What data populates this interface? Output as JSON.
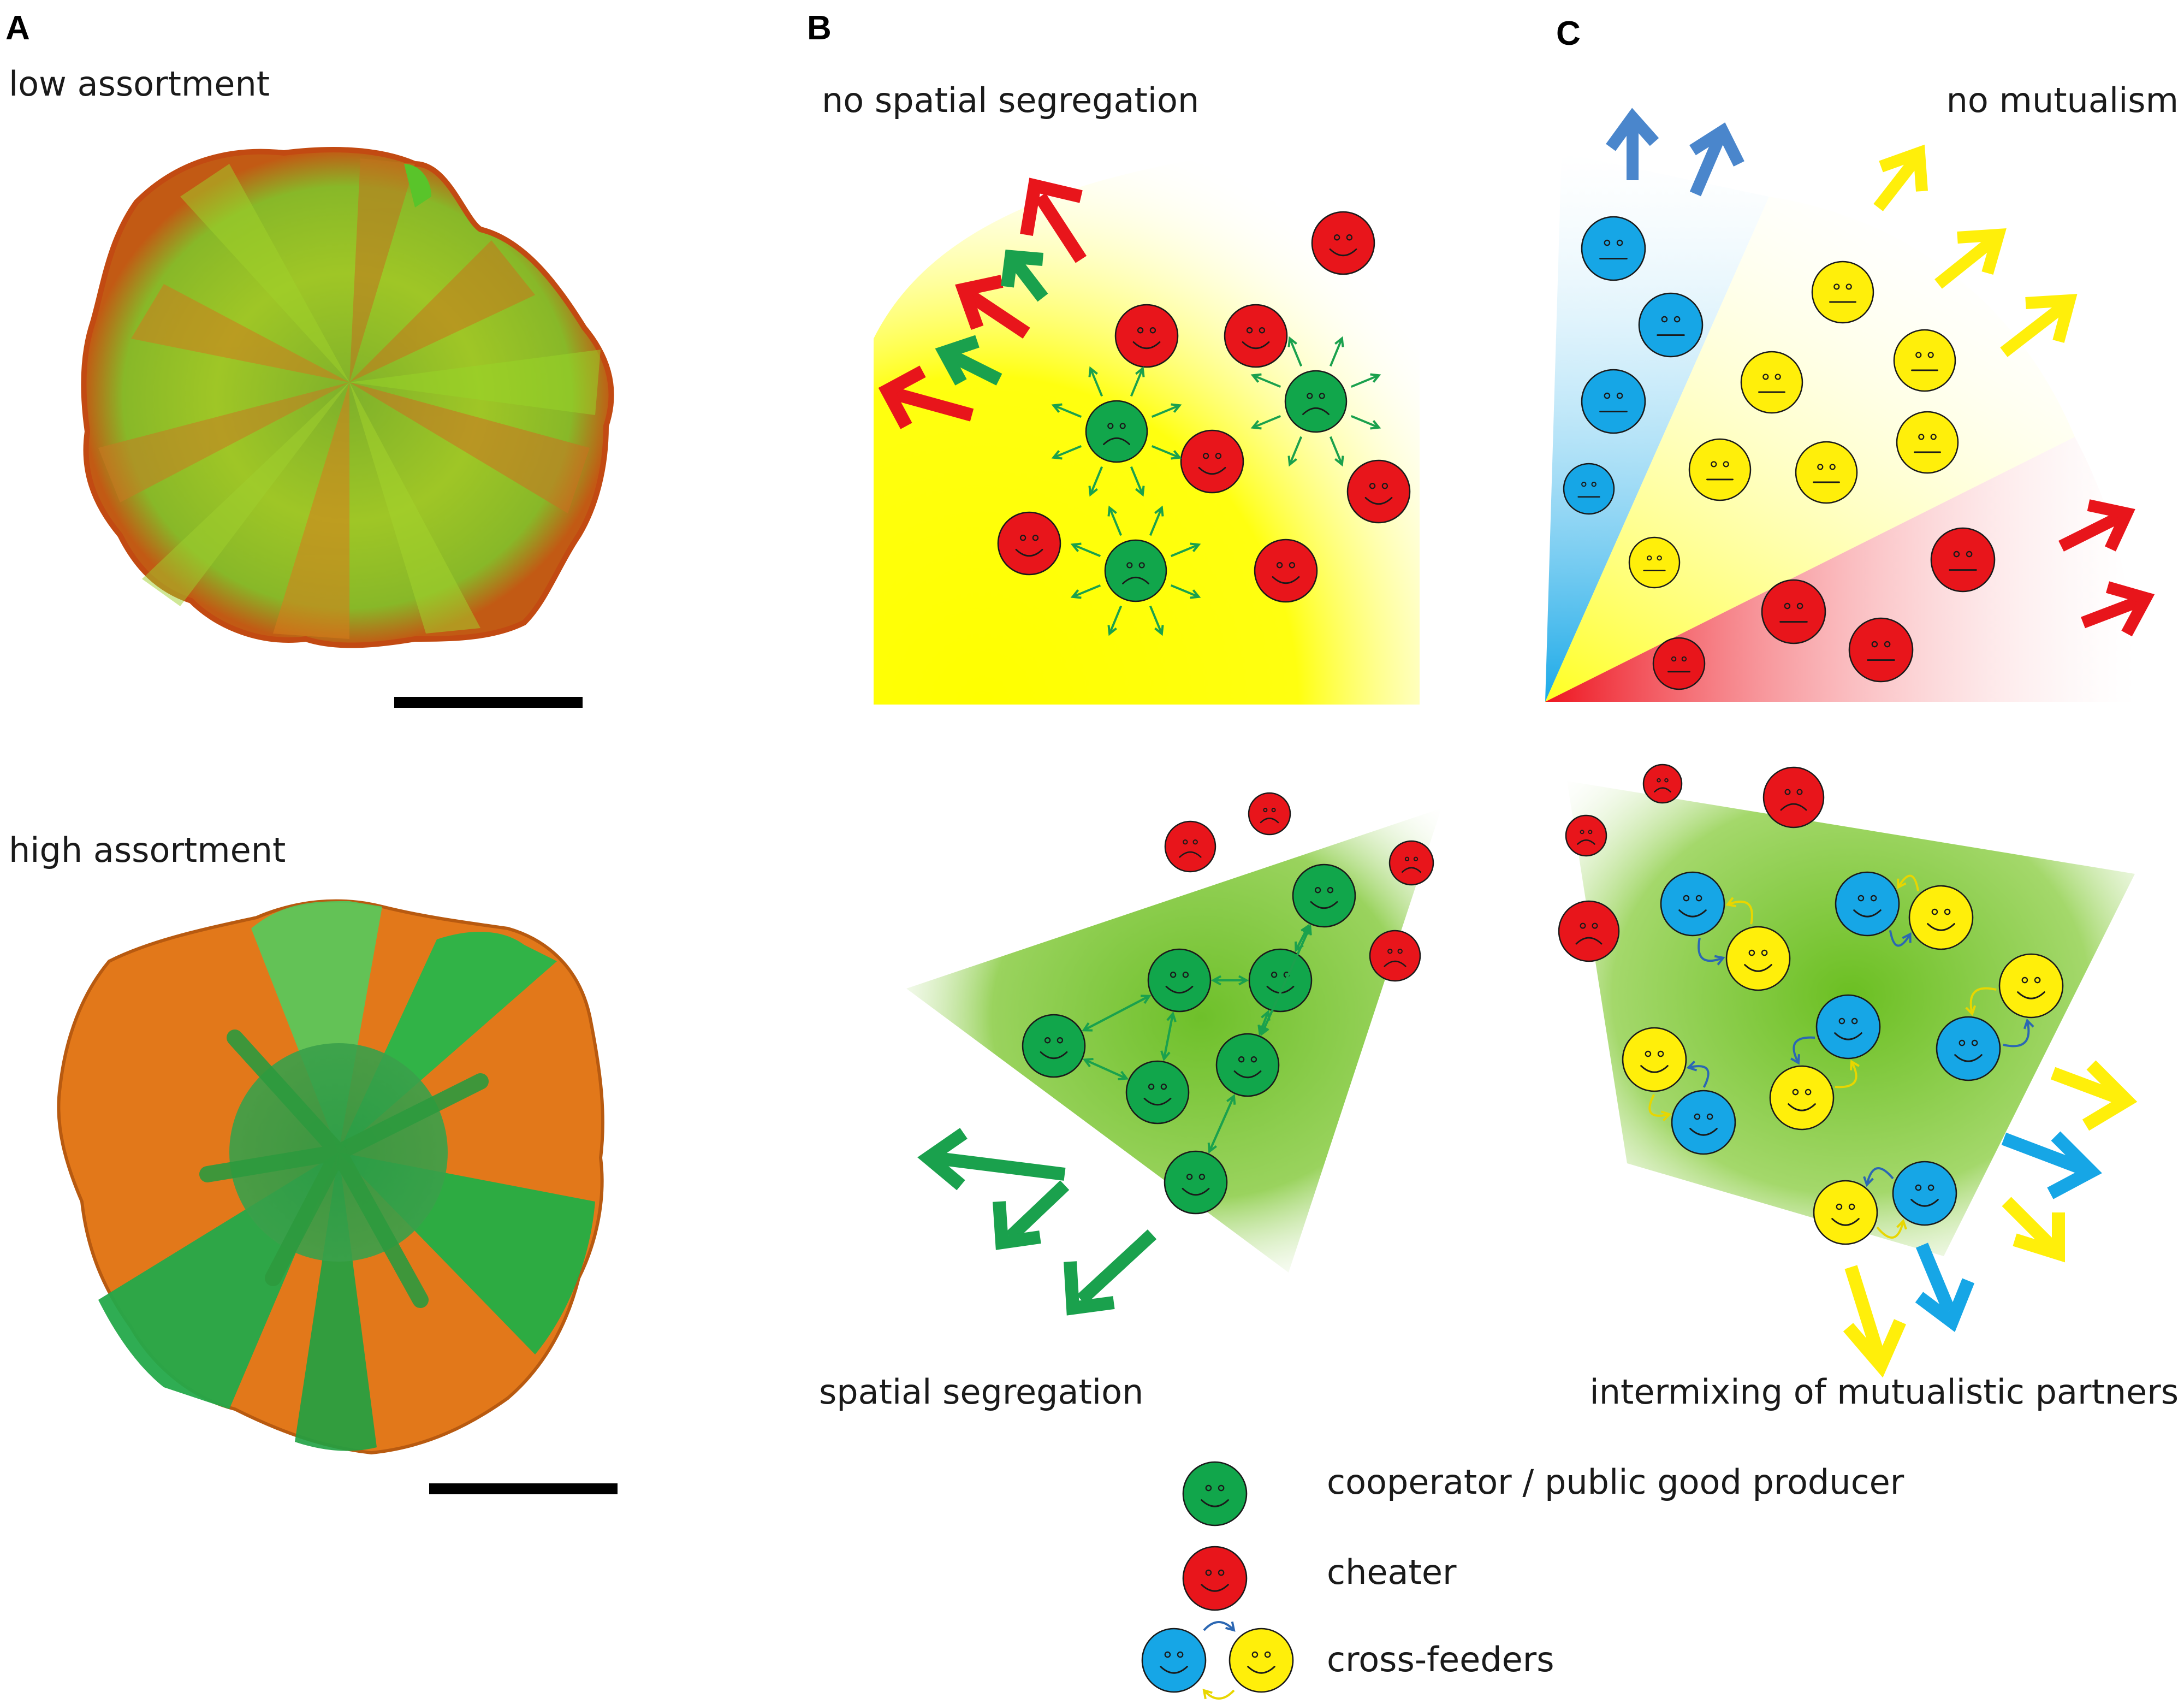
{
  "panels": {
    "A": {
      "letter": "A",
      "top_label": "low assortment",
      "bottom_label": "high assortment"
    },
    "B": {
      "letter": "B",
      "top_label": "no spatial segregation",
      "bottom_label": "spatial segregation"
    },
    "C": {
      "letter": "C",
      "top_label": "no mutualism",
      "bottom_label": "intermixing of mutualistic partners"
    }
  },
  "legend": [
    {
      "type": "cooperator",
      "label": "cooperator / public good producer"
    },
    {
      "type": "cheater",
      "label": "cheater"
    },
    {
      "type": "cross-feeders",
      "label": "cross-feeders"
    }
  ],
  "colors": {
    "cooperator": "#11a64b",
    "cheater": "#e8151b",
    "cross_feeder_blue": "#16a6e6",
    "cross_feeder_yellow": "#ffef0a",
    "colony_orange": "#e07a1c",
    "colony_green": "#27b542"
  }
}
